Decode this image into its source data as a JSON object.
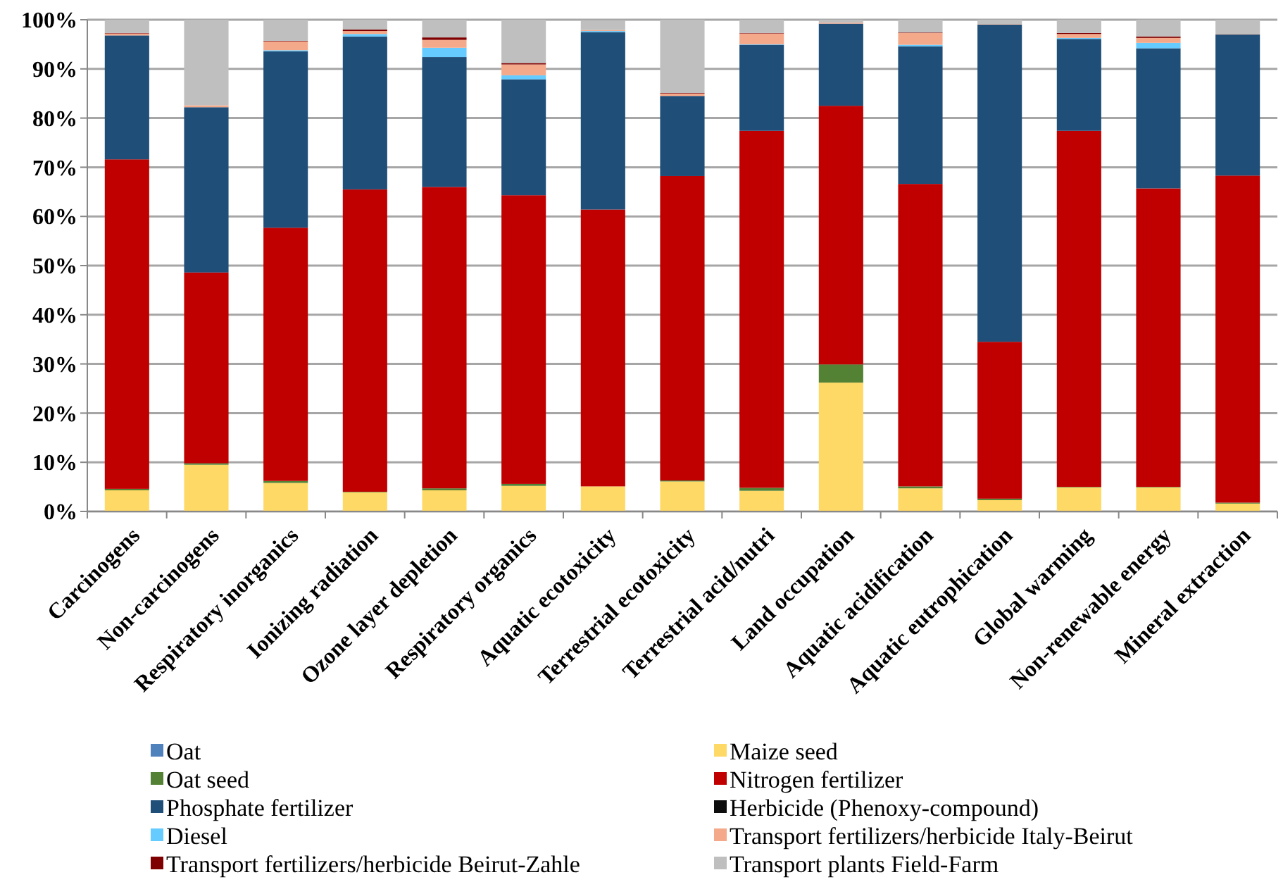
{
  "chart_data": {
    "type": "bar",
    "stacked": true,
    "grid": "y",
    "legend": "bottom",
    "categories": [
      "Carcinogens",
      "Non-carcinogens",
      "Respiratory inorganics",
      "Ionizing radiation",
      "Ozone layer depletion",
      "Respiratory organics",
      "Aquatic ecotoxicity",
      "Terrestrial ecotoxicity",
      "Terrestrial acid/nutri",
      "Land occupation",
      "Aquatic acidification",
      "Aquatic eutrophication",
      "Global warming",
      "Non-renewable energy",
      "Mineral extraction"
    ],
    "ylim": [
      0,
      100
    ],
    "yticks": [
      {
        "value": 0,
        "label": "0%"
      },
      {
        "value": 10,
        "label": "10%"
      },
      {
        "value": 20,
        "label": "20%"
      },
      {
        "value": 30,
        "label": "30%"
      },
      {
        "value": 40,
        "label": "40%"
      },
      {
        "value": 50,
        "label": "50%"
      },
      {
        "value": 60,
        "label": "60%"
      },
      {
        "value": 70,
        "label": "70%"
      },
      {
        "value": 80,
        "label": "80%"
      },
      {
        "value": 90,
        "label": "90%"
      },
      {
        "value": 100,
        "label": "100%"
      }
    ],
    "series": [
      {
        "name": "Oat",
        "color": "#4f81bd",
        "values": [
          0,
          0,
          0,
          0,
          0,
          0,
          0,
          0,
          0,
          0,
          0,
          0,
          0,
          0,
          0
        ]
      },
      {
        "name": "Maize seed",
        "color": "#ffd966",
        "values": [
          4.3,
          9.5,
          5.8,
          3.9,
          4.3,
          5.2,
          5.1,
          6.1,
          4.2,
          26.2,
          4.7,
          2.3,
          4.9,
          4.9,
          1.6
        ]
      },
      {
        "name": "Oat seed",
        "color": "#548235",
        "values": [
          0.3,
          0.3,
          0.4,
          0.1,
          0.4,
          0.4,
          null,
          0.2,
          0.6,
          3.7,
          0.4,
          0.3,
          0.1,
          0.1,
          0.2
        ]
      },
      {
        "name": "Nitrogen fertilizer",
        "color": "#c00000",
        "values": [
          67.0,
          38.8,
          51.5,
          61.5,
          61.3,
          58.7,
          56.3,
          61.9,
          72.6,
          52.6,
          61.5,
          31.9,
          72.4,
          60.7,
          66.5
        ]
      },
      {
        "name": "Phosphate fertilizer",
        "color": "#1f4e79",
        "values": [
          25.2,
          33.6,
          35.9,
          31.1,
          26.4,
          23.6,
          36.1,
          16.3,
          17.5,
          16.7,
          28.0,
          64.5,
          18.7,
          28.5,
          28.7
        ]
      },
      {
        "name": "Herbicide (Phenoxy-compound)",
        "color": "#0d0d0d",
        "values": [
          0,
          0,
          0,
          0,
          0,
          0,
          0,
          0,
          0,
          0,
          0,
          0,
          0,
          0,
          0
        ]
      },
      {
        "name": "Diesel",
        "color": "#66ccff",
        "values": [
          0,
          0,
          0.2,
          0.5,
          1.9,
          0.8,
          0.2,
          0,
          0.1,
          0,
          0.3,
          0,
          0.2,
          1.1,
          0
        ]
      },
      {
        "name": "Transport fertilizers/herbicide Italy-Beirut",
        "color": "#f4a98a",
        "values": [
          0.4,
          0.4,
          1.8,
          0.6,
          1.6,
          2.2,
          0.2,
          0.5,
          2.2,
          0.2,
          2.4,
          0.1,
          0.8,
          1.0,
          0.1
        ]
      },
      {
        "name": "Transport fertilizers/herbicide Beirut-Zahle",
        "color": "#7f0000",
        "values": [
          0.1,
          0,
          0.1,
          0.3,
          0.5,
          0.3,
          0,
          0.1,
          0.1,
          0,
          0.1,
          0,
          0.2,
          0.3,
          0
        ]
      },
      {
        "name": "Transport plants Field-Farm",
        "color": "#bfbfbf",
        "values": [
          2.7,
          17.4,
          4.3,
          2.0,
          3.6,
          8.8,
          2.0,
          14.9,
          2.7,
          0.6,
          2.6,
          0.9,
          2.7,
          3.4,
          2.9
        ]
      }
    ]
  }
}
